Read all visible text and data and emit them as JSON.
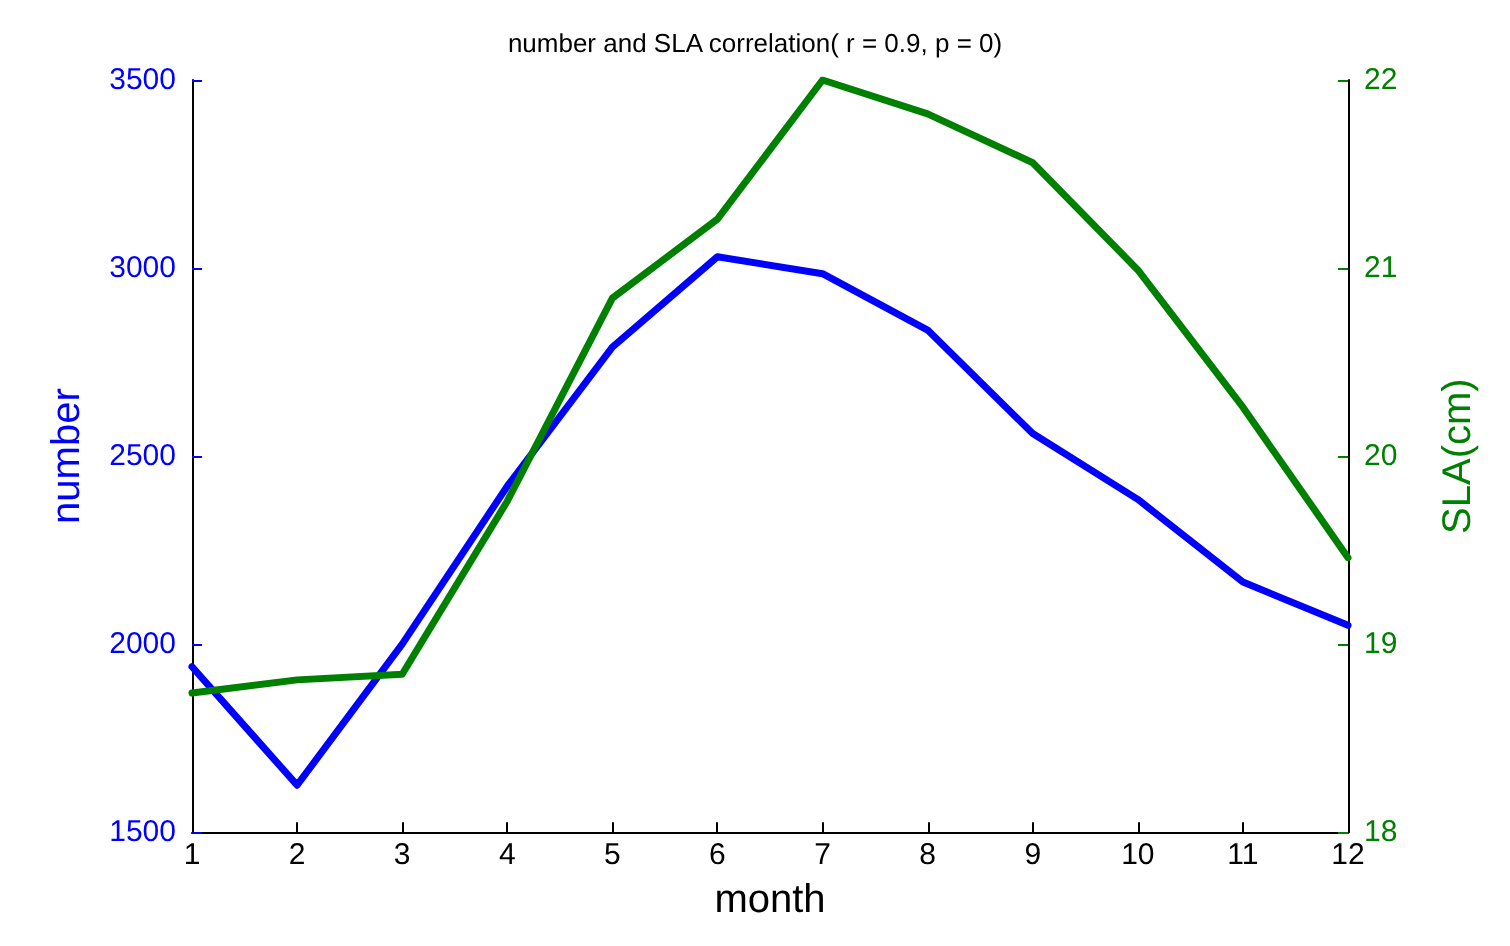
{
  "chart_data": {
    "type": "line",
    "title": "number and SLA correlation( r = 0.9, p = 0)",
    "xlabel": "month",
    "ylabel": "number",
    "y2label": "SLA(cm)",
    "x": [
      1,
      2,
      3,
      4,
      5,
      6,
      7,
      8,
      9,
      10,
      11,
      12
    ],
    "series": [
      {
        "color": "#0000ff",
        "values": [
          1940,
          1625,
          2000,
          2420,
          2790,
          3030,
          2985,
          2835,
          2560,
          2385,
          2165,
          2050
        ]
      },
      {
        "color": "#008000",
        "axis": "y2",
        "values": [
          18.74,
          18.81,
          18.84,
          19.76,
          20.84,
          21.26,
          22.0,
          21.82,
          21.56,
          20.99,
          20.26,
          19.46
        ]
      }
    ],
    "xlim": [
      1,
      12
    ],
    "xticks": [
      1,
      2,
      3,
      4,
      5,
      6,
      7,
      8,
      9,
      10,
      11,
      12
    ],
    "ylim": [
      1500,
      3500
    ],
    "yticks": [
      1500,
      2000,
      2500,
      3000,
      3500
    ],
    "y2lim": [
      18,
      22
    ],
    "y2ticks": [
      18,
      19,
      20,
      21,
      22
    ],
    "grid": false,
    "marker": "none",
    "line_style": "solid"
  }
}
